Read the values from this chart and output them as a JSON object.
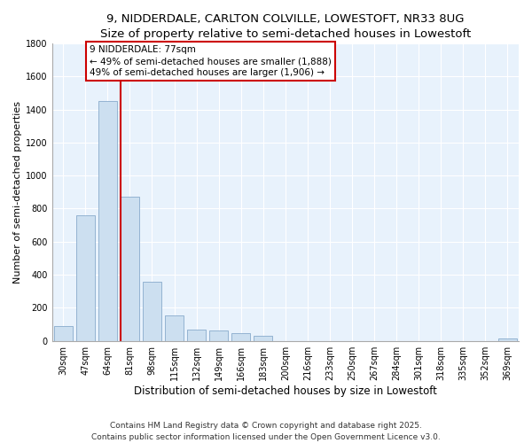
{
  "title1": "9, NIDDERDALE, CARLTON COLVILLE, LOWESTOFT, NR33 8UG",
  "title2": "Size of property relative to semi-detached houses in Lowestoft",
  "xlabel": "Distribution of semi-detached houses by size in Lowestoft",
  "ylabel": "Number of semi-detached properties",
  "categories": [
    "30sqm",
    "47sqm",
    "64sqm",
    "81sqm",
    "98sqm",
    "115sqm",
    "132sqm",
    "149sqm",
    "166sqm",
    "183sqm",
    "200sqm",
    "216sqm",
    "233sqm",
    "250sqm",
    "267sqm",
    "284sqm",
    "301sqm",
    "318sqm",
    "335sqm",
    "352sqm",
    "369sqm"
  ],
  "values": [
    90,
    760,
    1450,
    870,
    355,
    155,
    70,
    65,
    45,
    30,
    0,
    0,
    0,
    0,
    0,
    0,
    0,
    0,
    0,
    0,
    15
  ],
  "bar_color": "#ccdff0",
  "bar_edge_color": "#88aacc",
  "vline_x_idx": 3,
  "vline_color": "#cc0000",
  "annotation_title": "9 NIDDERDALE: 77sqm",
  "annotation_line1": "← 49% of semi-detached houses are smaller (1,888)",
  "annotation_line2": "49% of semi-detached houses are larger (1,906) →",
  "annotation_box_color": "#cc0000",
  "ylim": [
    0,
    1800
  ],
  "yticks": [
    0,
    200,
    400,
    600,
    800,
    1000,
    1200,
    1400,
    1600,
    1800
  ],
  "footer1": "Contains HM Land Registry data © Crown copyright and database right 2025.",
  "footer2": "Contains public sector information licensed under the Open Government Licence v3.0.",
  "bg_color": "#ddeeff",
  "plot_bg_color": "#e8f2fc",
  "title_fontsize": 9.5,
  "subtitle_fontsize": 9,
  "tick_fontsize": 7,
  "ylabel_fontsize": 8,
  "xlabel_fontsize": 8.5,
  "footer_fontsize": 6.5
}
